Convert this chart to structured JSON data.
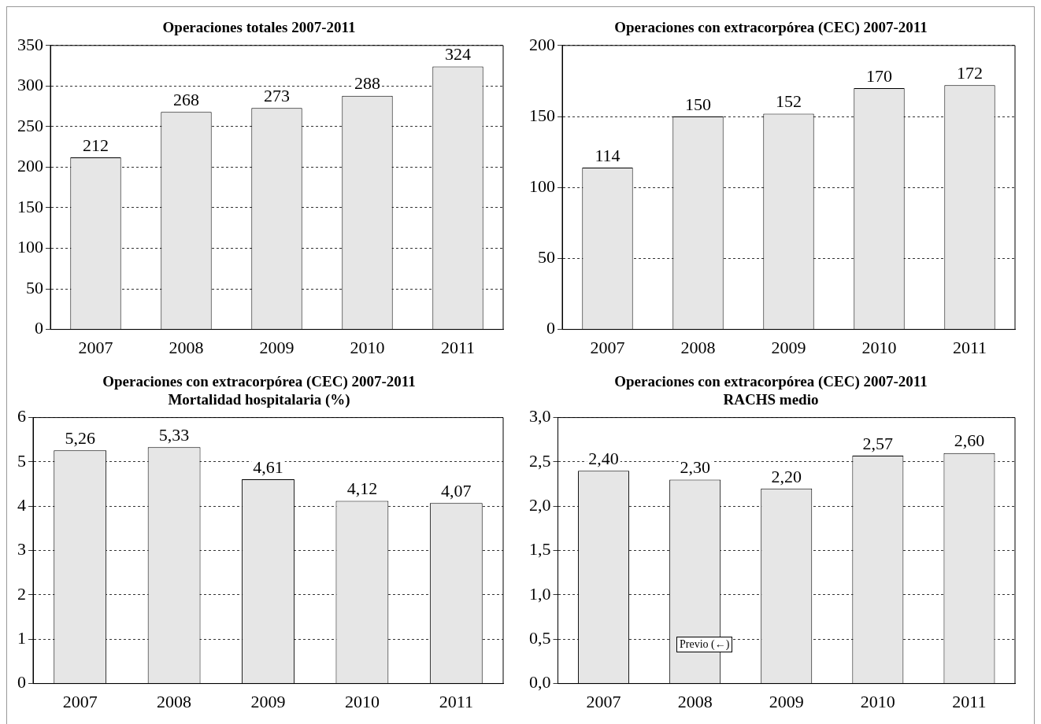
{
  "chart_data": [
    {
      "type": "bar",
      "title": "Operaciones totales 2007-2011",
      "categories": [
        "2007",
        "2008",
        "2009",
        "2010",
        "2011"
      ],
      "values": [
        212,
        268,
        273,
        288,
        324
      ],
      "value_labels": [
        "212",
        "268",
        "273",
        "288",
        "324"
      ],
      "color": "#e6e6e6",
      "ylim": [
        0,
        350
      ],
      "yticks": [
        0,
        50,
        100,
        150,
        200,
        250,
        300,
        350
      ],
      "grid": "y"
    },
    {
      "type": "bar",
      "title": "Operaciones con extracorpórea (CEC) 2007-2011",
      "categories": [
        "2007",
        "2008",
        "2009",
        "2010",
        "2011"
      ],
      "values": [
        114,
        150,
        152,
        170,
        172
      ],
      "value_labels": [
        "114",
        "150",
        "152",
        "170",
        "172"
      ],
      "color": "#e6e6e6",
      "ylim": [
        0,
        200
      ],
      "yticks": [
        0,
        50,
        100,
        150,
        200
      ],
      "grid": "y"
    },
    {
      "type": "bar",
      "title": "Operaciones con extracorpórea (CEC) 2007-2011",
      "subtitle": "Mortalidad hospitalaria (%)",
      "categories": [
        "2007",
        "2008",
        "2009",
        "2010",
        "2011"
      ],
      "values": [
        5.26,
        5.33,
        4.61,
        4.12,
        4.07
      ],
      "value_labels": [
        "5,26",
        "5,33",
        "4,61",
        "4,12",
        "4,07"
      ],
      "color": "#e6e6e6",
      "ylim": [
        0,
        6
      ],
      "yticks": [
        0,
        1,
        2,
        3,
        4,
        5,
        6
      ],
      "grid": "y"
    },
    {
      "type": "bar",
      "title": "Operaciones con extracorpórea (CEC) 2007-2011",
      "subtitle": "RACHS medio",
      "categories": [
        "2007",
        "2008",
        "2009",
        "2010",
        "2011"
      ],
      "values": [
        2.4,
        2.3,
        2.2,
        2.57,
        2.6
      ],
      "value_labels": [
        "2,40",
        "2,30",
        "2,20",
        "2,57",
        "2,60"
      ],
      "color": "#e6e6e6",
      "ylim": [
        0,
        3
      ],
      "yticks": [
        {
          "value": 0,
          "label": "0,0"
        },
        {
          "value": 0.5,
          "label": "0,5"
        },
        {
          "value": 1,
          "label": "1,0"
        },
        {
          "value": 1.5,
          "label": "1,5"
        },
        {
          "value": 2,
          "label": "2,0"
        },
        {
          "value": 2.5,
          "label": "2,5"
        },
        {
          "value": 3,
          "label": "3,0"
        }
      ],
      "grid": "y",
      "annotations": [
        "Previo (←)"
      ]
    }
  ]
}
